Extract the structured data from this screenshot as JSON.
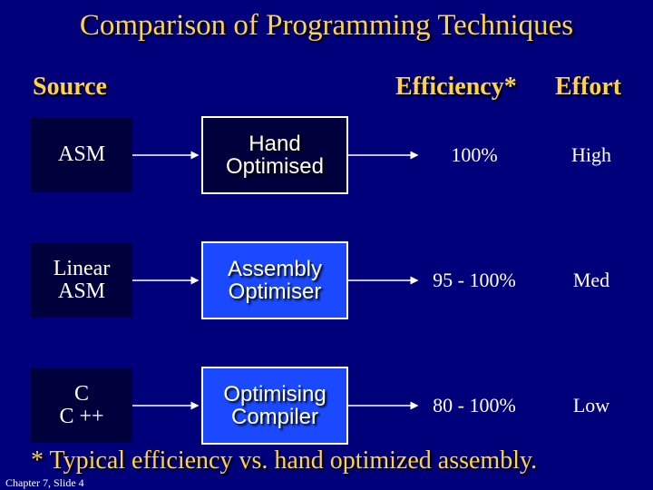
{
  "title": "Comparison of Programming Techniques",
  "headers": {
    "source": "Source",
    "efficiency": "Efficiency*",
    "effort": "Effort"
  },
  "rows": [
    {
      "source": [
        "ASM"
      ],
      "technique": [
        "Hand",
        "Optimised"
      ],
      "efficiency": "100%",
      "effort": "High"
    },
    {
      "source": [
        "Linear",
        "ASM"
      ],
      "technique": [
        "Assembly",
        "Optimiser"
      ],
      "efficiency": "95 - 100%",
      "effort": "Med"
    },
    {
      "source": [
        "C",
        "C ++"
      ],
      "technique": [
        "Optimising",
        "Compiler"
      ],
      "efficiency": "80 - 100%",
      "effort": "Low"
    }
  ],
  "footnote": "* Typical efficiency vs. hand optimized assembly.",
  "slide_label": "Chapter 7, Slide 4",
  "colors": {
    "background": "#00007a",
    "title": "#ffd24a",
    "dark_box": "#00003c",
    "blue_box": "#1a49ff"
  }
}
